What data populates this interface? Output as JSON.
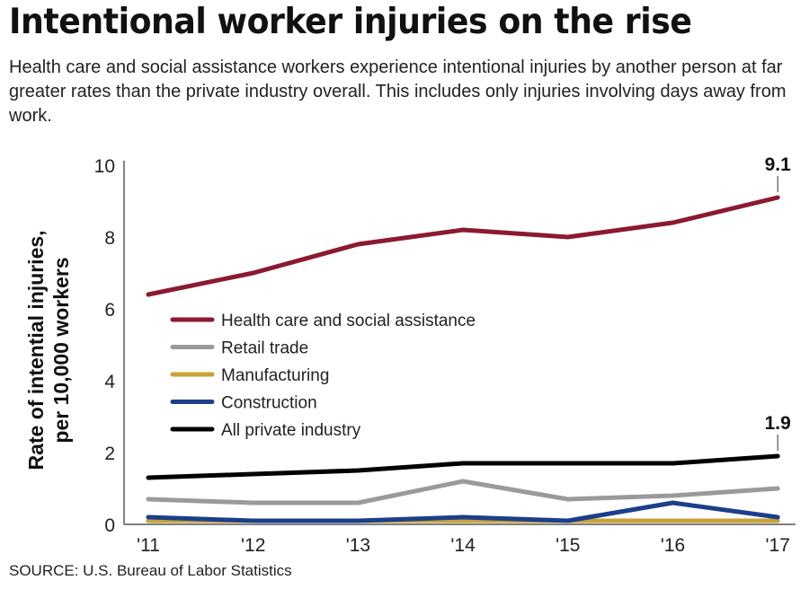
{
  "title": "Intentional worker injuries on the rise",
  "subtitle": "Health care and social assistance workers experience intentional injuries by another person at far greater rates than the private industry overall. This includes only injuries involving days away from work.",
  "source": "SOURCE: U.S. Bureau of Labor Statistics",
  "chart_data": {
    "type": "line",
    "categories": [
      "'11",
      "'12",
      "'13",
      "'14",
      "'15",
      "'16",
      "'17"
    ],
    "ylabel": [
      "Rate of intential injuries,",
      "per 10,000 workers"
    ],
    "ylim": [
      0,
      10
    ],
    "yticks": [
      "0",
      "2",
      "4",
      "6",
      "8",
      "10"
    ],
    "grid": false,
    "legend_placement": "center-left",
    "series": [
      {
        "name": "Health care and social assistance",
        "color": "#8b1a30",
        "values": [
          6.4,
          7.0,
          7.8,
          8.2,
          8.0,
          8.4,
          9.1
        ],
        "end_label": "9.1"
      },
      {
        "name": "Retail trade",
        "color": "#9a9a9a",
        "values": [
          0.7,
          0.6,
          0.6,
          1.2,
          0.7,
          0.8,
          1.0
        ]
      },
      {
        "name": "Manufacturing",
        "color": "#c9a23a",
        "values": [
          0.1,
          0.1,
          0.1,
          0.1,
          0.1,
          0.1,
          0.1
        ]
      },
      {
        "name": "Construction",
        "color": "#1c3f8a",
        "values": [
          0.2,
          0.1,
          0.1,
          0.2,
          0.1,
          0.6,
          0.2
        ]
      },
      {
        "name": "All private industry",
        "color": "#000000",
        "values": [
          1.3,
          1.4,
          1.5,
          1.7,
          1.7,
          1.7,
          1.9
        ],
        "end_label": "1.9"
      }
    ]
  }
}
